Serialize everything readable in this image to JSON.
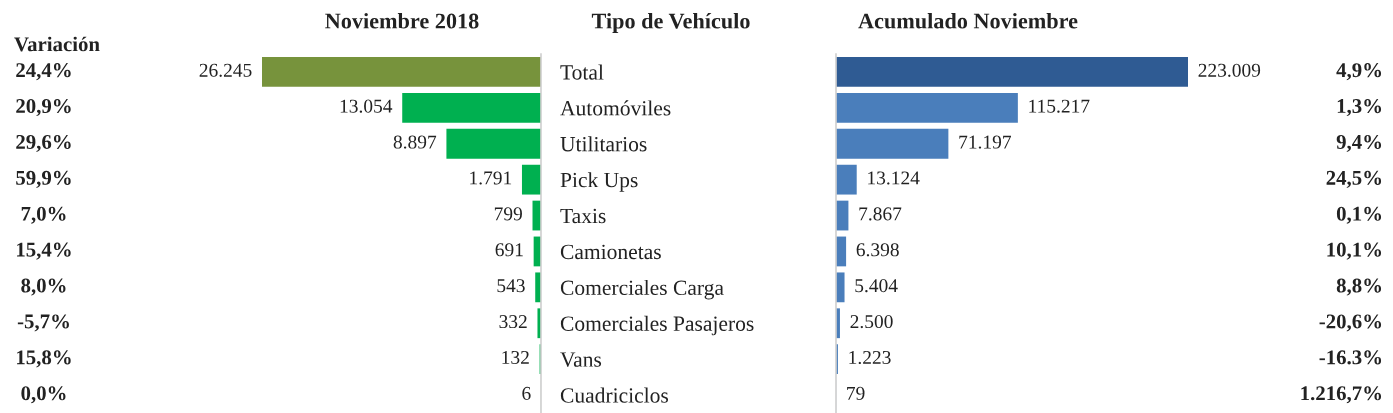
{
  "chart_data": [
    {
      "type": "bar",
      "orientation": "horizontal",
      "title": "Noviembre 2018",
      "categories": [
        "Total",
        "Automóviles",
        "Utilitarios",
        "Pick Ups",
        "Taxis",
        "Camionetas",
        "Comerciales Carga",
        "Comerciales Pasajeros",
        "Vans",
        "Cuadriciclos"
      ],
      "values": [
        26245,
        13054,
        8897,
        1791,
        799,
        691,
        543,
        332,
        132,
        6
      ],
      "colors": [
        "#77933c",
        "#00b050",
        "#00b050",
        "#00b050",
        "#00b050",
        "#00b050",
        "#00b050",
        "#00b050",
        "#00b050",
        "#00b050"
      ],
      "value_labels": [
        "26.245",
        "13.054",
        "8.897",
        "1.791",
        "799",
        "691",
        "543",
        "332",
        "132",
        "6"
      ],
      "xlim": [
        26245,
        0
      ],
      "tick_labels": false,
      "annotations": [
        "Variación",
        "24,4%",
        "20,9%",
        "29,6%",
        "59,9%",
        "7,0%",
        "15,4%",
        "8,0%",
        "-5,7%",
        "15,8%",
        "0,0%"
      ]
    },
    {
      "type": "bar",
      "orientation": "horizontal",
      "title": "Acumulado Noviembre",
      "ylabel": "Tipo de Vehículo",
      "categories": [
        "Total",
        "Automóviles",
        "Utilitarios",
        "Pick Ups",
        "Taxis",
        "Camionetas",
        "Comerciales Carga",
        "Comerciales Pasajeros",
        "Vans",
        "Cuadriciclos"
      ],
      "values": [
        223009,
        115217,
        71197,
        13124,
        7867,
        6398,
        5404,
        2500,
        1223,
        79
      ],
      "colors": [
        "#2f5b93",
        "#4a7ebb",
        "#4a7ebb",
        "#4a7ebb",
        "#4a7ebb",
        "#4a7ebb",
        "#4a7ebb",
        "#4a7ebb",
        "#4a7ebb",
        "#4a7ebb"
      ],
      "value_labels": [
        "223.009",
        "115.217",
        "71.197",
        "13.124",
        "7.867",
        "6.398",
        "5.404",
        "2.500",
        "1.223",
        "79"
      ],
      "xlim": [
        0,
        223009
      ],
      "tick_labels": "y",
      "annotations": [
        "4,9%",
        "1,3%",
        "9,4%",
        "24,5%",
        "0,1%",
        "10,1%",
        "8,8%",
        "-20,6%",
        "-16.3%",
        "1.216,7%"
      ]
    }
  ]
}
